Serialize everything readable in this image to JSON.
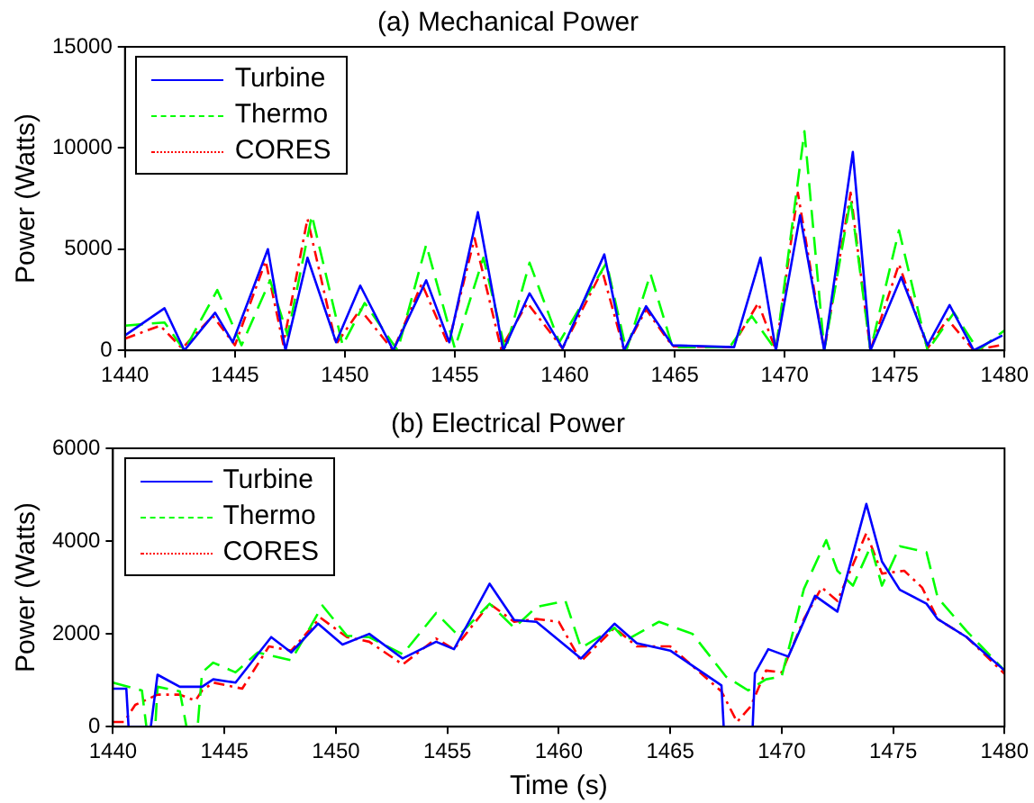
{
  "chart_data": [
    {
      "type": "line",
      "title": "(a) Mechanical Power",
      "ylabel": "Power (Watts)",
      "xlim": [
        1440,
        1480
      ],
      "xticks": [
        1440,
        1445,
        1450,
        1455,
        1460,
        1465,
        1470,
        1475,
        1480
      ],
      "ylim": [
        0,
        15000
      ],
      "yticks": [
        0,
        5000,
        10000,
        15000
      ],
      "grid": false,
      "legend": "top left",
      "marker": "none",
      "series": [
        {
          "name": "Turbine",
          "color": "#0000ff",
          "line_style": "solid",
          "x": [
            1440,
            1441.8,
            1442.7,
            1444.1,
            1444.9,
            1446.5,
            1447.3,
            1448.3,
            1449.6,
            1450.7,
            1452.2,
            1453.7,
            1454.75,
            1456.05,
            1457.2,
            1458.4,
            1459.9,
            1461.8,
            1462.7,
            1463.7,
            1464.9,
            1467.7,
            1468.9,
            1469.6,
            1470.7,
            1471.8,
            1473.1,
            1473.9,
            1475.3,
            1476.5,
            1477.5,
            1478.6,
            1479.9
          ],
          "values": [
            740,
            2080,
            0,
            1860,
            400,
            5000,
            0,
            4580,
            400,
            3200,
            0,
            3460,
            400,
            6830,
            0,
            2820,
            100,
            4740,
            0,
            2180,
            250,
            160,
            4580,
            0,
            6670,
            0,
            9800,
            0,
            3620,
            250,
            2240,
            0,
            740
          ]
        },
        {
          "name": "Thermo",
          "color": "#00ff00",
          "line_style": "dashed",
          "x": [
            1440,
            1441.8,
            1442.7,
            1444.2,
            1445.3,
            1446.6,
            1447.4,
            1448.5,
            1449.9,
            1450.9,
            1452.4,
            1453.7,
            1455,
            1456.3,
            1457.3,
            1458.4,
            1459.75,
            1461.9,
            1462.8,
            1463.9,
            1464.9,
            1467.5,
            1468.5,
            1469.6,
            1470.9,
            1471.8,
            1473,
            1473.9,
            1475.2,
            1476.5,
            1477.7,
            1478.8,
            1480
          ],
          "values": [
            1220,
            1380,
            0,
            2980,
            250,
            3460,
            740,
            6670,
            250,
            2340,
            0,
            5220,
            100,
            4580,
            0,
            4330,
            400,
            4330,
            0,
            3780,
            160,
            160,
            1700,
            0,
            10830,
            0,
            7470,
            0,
            5930,
            0,
            1860,
            0,
            990
          ]
        },
        {
          "name": "CORES",
          "color": "#ff0000",
          "line_style": "dotted",
          "x": [
            1440,
            1441.6,
            1442.6,
            1444,
            1445,
            1446.4,
            1447.2,
            1448.3,
            1449.6,
            1450.7,
            1452.2,
            1453.5,
            1454.7,
            1455.9,
            1457.1,
            1458.3,
            1459.9,
            1461.7,
            1462.7,
            1463.7,
            1464.9,
            1467.6,
            1468.8,
            1469.6,
            1470.6,
            1471.8,
            1473,
            1473.9,
            1475.2,
            1476.5,
            1477.4,
            1478.6,
            1480
          ],
          "values": [
            580,
            1220,
            100,
            1700,
            250,
            4420,
            300,
            6500,
            300,
            2020,
            0,
            3300,
            300,
            5540,
            100,
            2340,
            100,
            3940,
            0,
            2020,
            200,
            160,
            2340,
            0,
            7790,
            0,
            7790,
            0,
            4260,
            100,
            1540,
            0,
            300
          ]
        }
      ]
    },
    {
      "type": "line",
      "title": "(b) Electrical Power",
      "xlabel": "Time (s)",
      "ylabel": "Power (Watts)",
      "xlim": [
        1440,
        1480
      ],
      "xticks": [
        1440,
        1445,
        1450,
        1455,
        1460,
        1465,
        1470,
        1475,
        1480
      ],
      "ylim": [
        0,
        6000
      ],
      "yticks": [
        0,
        2000,
        4000,
        6000
      ],
      "grid": false,
      "legend": "top left",
      "marker": "none",
      "series": [
        {
          "name": "Turbine",
          "color": "#0000ff",
          "line_style": "solid",
          "x": [
            1440,
            1440.6,
            1440.7,
            1441.7,
            1442,
            1443,
            1444,
            1444.5,
            1445.5,
            1447.1,
            1448,
            1449.2,
            1450.3,
            1451.5,
            1453,
            1454.5,
            1455.3,
            1456.9,
            1458,
            1459,
            1461,
            1462.5,
            1463.5,
            1465,
            1467.3,
            1467.4,
            1468.7,
            1468.8,
            1469.4,
            1470.3,
            1471.5,
            1472.5,
            1473.8,
            1474.5,
            1475.3,
            1476.5,
            1477,
            1478.3,
            1480
          ],
          "values": [
            820,
            820,
            0,
            0,
            1120,
            860,
            860,
            1020,
            950,
            1930,
            1600,
            2220,
            1770,
            2000,
            1470,
            1830,
            1670,
            3080,
            2300,
            2260,
            1470,
            2220,
            1800,
            1640,
            890,
            0,
            0,
            1150,
            1670,
            1510,
            2820,
            2480,
            4800,
            3560,
            2950,
            2650,
            2320,
            1930,
            1210
          ]
        },
        {
          "name": "Thermo",
          "color": "#00ff00",
          "line_style": "dashed",
          "x": [
            1440,
            1441.3,
            1441.5,
            1441.9,
            1442,
            1443,
            1443.3,
            1443.8,
            1444,
            1444.5,
            1445.5,
            1446.5,
            1448,
            1449.4,
            1450.5,
            1451.5,
            1453,
            1454.5,
            1455.5,
            1456.9,
            1458,
            1459,
            1460.3,
            1461,
            1462.5,
            1463,
            1464.5,
            1466,
            1467.5,
            1468.5,
            1469.3,
            1470,
            1471,
            1472,
            1472.5,
            1473.2,
            1474,
            1474.5,
            1475.3,
            1476.5,
            1477,
            1478.3,
            1480
          ],
          "values": [
            950,
            780,
            0,
            0,
            860,
            760,
            0,
            0,
            1170,
            1380,
            1170,
            1600,
            1430,
            2610,
            1960,
            1930,
            1560,
            2450,
            1960,
            2650,
            2130,
            2580,
            2710,
            1700,
            2130,
            1860,
            2260,
            2000,
            1080,
            780,
            1020,
            1080,
            2970,
            4020,
            3360,
            3040,
            3890,
            3040,
            3890,
            3760,
            2780,
            2060,
            1210
          ]
        },
        {
          "name": "CORES",
          "color": "#ff0000",
          "line_style": "dotted",
          "x": [
            1440,
            1440.5,
            1441,
            1442,
            1443,
            1443.7,
            1444,
            1444.5,
            1445.8,
            1447,
            1448,
            1449.3,
            1450.5,
            1451.5,
            1453,
            1454.5,
            1455.3,
            1456.9,
            1458,
            1459,
            1460,
            1461,
            1462.5,
            1463.5,
            1465,
            1467.3,
            1468,
            1468.6,
            1469.3,
            1470,
            1471,
            1471.8,
            1472.5,
            1473.8,
            1474.5,
            1475.5,
            1476.3,
            1477,
            1478.3,
            1480
          ],
          "values": [
            100,
            100,
            470,
            690,
            690,
            560,
            780,
            950,
            820,
            1730,
            1640,
            2350,
            1930,
            1830,
            1340,
            1900,
            1670,
            2650,
            2260,
            2320,
            2260,
            1410,
            2130,
            1730,
            1730,
            760,
            100,
            430,
            1210,
            1170,
            2320,
            3000,
            2710,
            4170,
            3300,
            3360,
            3000,
            2320,
            1930,
            1140
          ]
        }
      ]
    }
  ]
}
